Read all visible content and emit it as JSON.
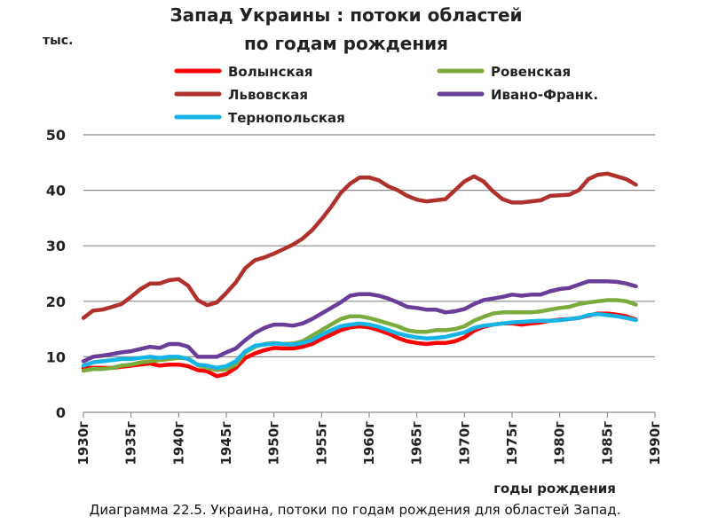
{
  "chart_data": {
    "type": "line",
    "title_line1": "Запад Украины : потоки областей",
    "title_line2": "по годам рождения",
    "ylabel": "тыс.",
    "xlabel": "годы рождения",
    "xlim": [
      1930,
      1990
    ],
    "ylim": [
      0,
      50
    ],
    "yticks": [
      0,
      10,
      20,
      30,
      40,
      50
    ],
    "xticks": [
      "1930г",
      "1935г",
      "1940г",
      "1945г",
      "1950г",
      "1955г",
      "1960г",
      "1965г",
      "1970г",
      "1975г",
      "1980г",
      "1985г",
      "1990г"
    ],
    "grid": "horizontal",
    "legend_position": "top",
    "x": [
      1930,
      1931,
      1932,
      1933,
      1934,
      1935,
      1936,
      1937,
      1938,
      1939,
      1940,
      1941,
      1942,
      1943,
      1944,
      1945,
      1946,
      1947,
      1948,
      1949,
      1950,
      1951,
      1952,
      1953,
      1954,
      1955,
      1956,
      1957,
      1958,
      1959,
      1960,
      1961,
      1962,
      1963,
      1964,
      1965,
      1966,
      1967,
      1968,
      1969,
      1970,
      1971,
      1972,
      1973,
      1974,
      1975,
      1976,
      1977,
      1978,
      1979,
      1980,
      1981,
      1982,
      1983,
      1984,
      1985,
      1986,
      1987,
      1988
    ],
    "series": [
      {
        "name": "Волынская",
        "color": "#ff0000",
        "values": [
          8.0,
          8.0,
          8.0,
          8.0,
          8.2,
          8.4,
          8.6,
          8.8,
          8.4,
          8.6,
          8.6,
          8.3,
          7.6,
          7.4,
          6.5,
          6.9,
          8.0,
          9.8,
          10.6,
          11.2,
          11.6,
          11.5,
          11.5,
          11.8,
          12.3,
          13.2,
          14.0,
          14.8,
          15.3,
          15.5,
          15.3,
          14.8,
          14.2,
          13.4,
          12.8,
          12.5,
          12.3,
          12.5,
          12.5,
          12.8,
          13.5,
          14.7,
          15.4,
          15.8,
          16.0,
          16.0,
          15.8,
          16.0,
          16.2,
          16.5,
          16.7,
          16.8,
          17.0,
          17.4,
          17.8,
          17.8,
          17.6,
          17.3,
          16.7
        ]
      },
      {
        "name": "Ровенская",
        "color": "#7cab3d",
        "values": [
          7.5,
          7.8,
          7.8,
          8.0,
          8.4,
          8.6,
          9.0,
          9.2,
          9.4,
          9.6,
          9.8,
          9.7,
          8.5,
          8.0,
          7.6,
          7.8,
          8.6,
          10.8,
          11.8,
          12.3,
          12.5,
          12.3,
          12.4,
          12.8,
          13.8,
          14.8,
          15.8,
          16.8,
          17.3,
          17.3,
          17.0,
          16.5,
          16.0,
          15.5,
          14.8,
          14.5,
          14.5,
          14.8,
          14.8,
          15.0,
          15.5,
          16.5,
          17.2,
          17.8,
          18.0,
          18.0,
          18.0,
          18.0,
          18.2,
          18.5,
          18.8,
          19.0,
          19.5,
          19.8,
          20.0,
          20.2,
          20.2,
          20.0,
          19.4
        ]
      },
      {
        "name": "Львовская",
        "color": "#b0302c",
        "values": [
          17.0,
          18.3,
          18.5,
          19.0,
          19.5,
          20.8,
          22.2,
          23.2,
          23.2,
          23.8,
          24.0,
          22.8,
          20.2,
          19.3,
          19.8,
          21.5,
          23.4,
          26.0,
          27.4,
          27.9,
          28.6,
          29.4,
          30.2,
          31.3,
          32.8,
          34.8,
          37.0,
          39.5,
          41.2,
          42.3,
          42.3,
          41.8,
          40.7,
          40.0,
          39.0,
          38.3,
          38.0,
          38.2,
          38.4,
          40.0,
          41.6,
          42.5,
          41.6,
          39.8,
          38.4,
          37.8,
          37.8,
          38.0,
          38.2,
          39.0,
          39.1,
          39.2,
          40.0,
          42.0,
          42.8,
          43.0,
          42.5,
          42.0,
          41.0
        ]
      },
      {
        "name": "Ивано-Франк.",
        "color": "#6a3e98",
        "values": [
          9.2,
          10.0,
          10.2,
          10.5,
          10.8,
          11.0,
          11.4,
          11.8,
          11.6,
          12.3,
          12.3,
          11.8,
          10.0,
          10.0,
          10.0,
          10.8,
          11.5,
          13.0,
          14.3,
          15.2,
          15.8,
          15.8,
          15.6,
          16.0,
          16.8,
          17.8,
          18.8,
          19.8,
          21.0,
          21.3,
          21.3,
          21.0,
          20.5,
          19.8,
          19.0,
          18.8,
          18.5,
          18.5,
          18.0,
          18.2,
          18.6,
          19.5,
          20.2,
          20.5,
          20.8,
          21.2,
          21.0,
          21.2,
          21.2,
          21.8,
          22.2,
          22.4,
          23.0,
          23.6,
          23.6,
          23.6,
          23.5,
          23.2,
          22.7
        ]
      },
      {
        "name": "Тернопольская",
        "color": "#14b4e6",
        "values": [
          8.4,
          9.0,
          9.2,
          9.4,
          9.6,
          9.6,
          9.8,
          10.0,
          9.8,
          10.0,
          10.0,
          9.6,
          8.6,
          8.4,
          8.0,
          8.3,
          9.2,
          11.0,
          12.0,
          12.2,
          12.4,
          12.3,
          12.2,
          12.5,
          13.0,
          14.0,
          14.8,
          15.5,
          15.8,
          16.0,
          15.8,
          15.4,
          14.8,
          14.2,
          13.8,
          13.5,
          13.3,
          13.4,
          13.6,
          14.0,
          14.4,
          15.2,
          15.6,
          15.8,
          16.0,
          16.2,
          16.3,
          16.4,
          16.5,
          16.5,
          16.6,
          16.8,
          17.0,
          17.5,
          17.7,
          17.5,
          17.3,
          17.0,
          16.6
        ]
      }
    ]
  },
  "caption": "Диаграмма 22.5. Украина, потоки по годам рождения для областей Запад."
}
